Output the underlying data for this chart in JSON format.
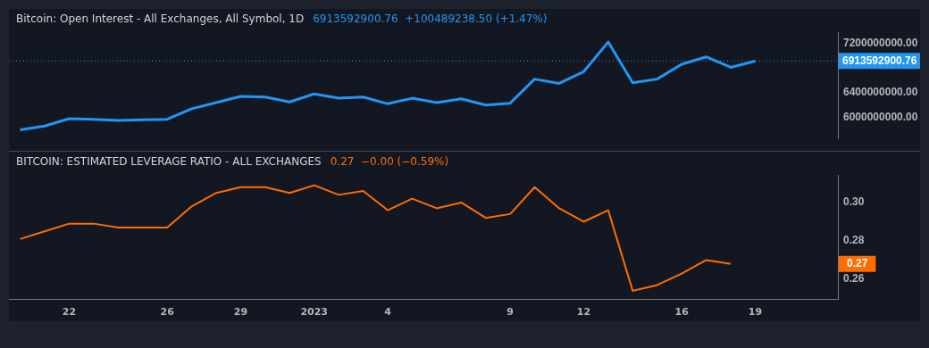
{
  "chart_data": [
    {
      "type": "line",
      "title": "Bitcoin: Open Interest - All Exchanges, All Symbol, 1D",
      "subtitle": "6913592900.76  +100489238.50 (+1.47%)",
      "marker": "none",
      "tick_labels": "y",
      "x": [
        "2022-12-20",
        "2022-12-21",
        "2022-12-22",
        "2022-12-23",
        "2022-12-24",
        "2022-12-25",
        "2022-12-26",
        "2022-12-27",
        "2022-12-28",
        "2022-12-29",
        "2022-12-30",
        "2022-12-31",
        "2023-01-01",
        "2023-01-02",
        "2023-01-03",
        "2023-01-04",
        "2023-01-05",
        "2023-01-06",
        "2023-01-07",
        "2023-01-08",
        "2023-01-09",
        "2023-01-10",
        "2023-01-11",
        "2023-01-12",
        "2023-01-13",
        "2023-01-14",
        "2023-01-15",
        "2023-01-16",
        "2023-01-17",
        "2023-01-18",
        "2023-01-19"
      ],
      "series": [
        {
          "color": "#2196f3",
          "values": [
            5800000000,
            5860000000,
            5980000000,
            5970000000,
            5950000000,
            5960000000,
            5970000000,
            6140000000,
            6240000000,
            6340000000,
            6330000000,
            6250000000,
            6380000000,
            6310000000,
            6330000000,
            6220000000,
            6310000000,
            6240000000,
            6300000000,
            6200000000,
            6230000000,
            6620000000,
            6550000000,
            6740000000,
            7220000000,
            6560000000,
            6620000000,
            6860000000,
            6980000000,
            6810000000,
            6910000000
          ]
        }
      ],
      "xlim": [
        "2022-12-19T13:00",
        "2023-01-22T09:00"
      ],
      "ylim": [
        5650000000,
        7380000000
      ],
      "yticks": [
        {
          "value": 6000000000,
          "label": "6000000000.00"
        },
        {
          "value": 6400000000,
          "label": "6400000000.00"
        },
        {
          "value": 7200000000,
          "label": "7200000000.00"
        }
      ],
      "ref_lines": [
        {
          "axis": "y",
          "value": 6913592900.76,
          "label": "6913592900.76",
          "color": "#2196f3",
          "line_style": "dotted"
        }
      ]
    },
    {
      "type": "line",
      "title": "BITCOIN: ESTIMATED LEVERAGE RATIO - ALL EXCHANGES",
      "subtitle": "0.27  −0.00 (−0.59%)",
      "marker": "none",
      "x": [
        "2022-12-20",
        "2022-12-21",
        "2022-12-22",
        "2022-12-23",
        "2022-12-24",
        "2022-12-25",
        "2022-12-26",
        "2022-12-27",
        "2022-12-28",
        "2022-12-29",
        "2022-12-30",
        "2022-12-31",
        "2023-01-01",
        "2023-01-02",
        "2023-01-03",
        "2023-01-04",
        "2023-01-05",
        "2023-01-06",
        "2023-01-07",
        "2023-01-08",
        "2023-01-09",
        "2023-01-10",
        "2023-01-11",
        "2023-01-12",
        "2023-01-13",
        "2023-01-14",
        "2023-01-15",
        "2023-01-16",
        "2023-01-17",
        "2023-01-18"
      ],
      "series": [
        {
          "color": "#ff6d00",
          "values": [
            0.281,
            0.285,
            0.289,
            0.289,
            0.287,
            0.287,
            0.287,
            0.298,
            0.305,
            0.308,
            0.308,
            0.305,
            0.309,
            0.304,
            0.306,
            0.296,
            0.302,
            0.297,
            0.3,
            0.292,
            0.294,
            0.308,
            0.297,
            0.29,
            0.296,
            0.254,
            0.257,
            0.263,
            0.27,
            0.268
          ]
        }
      ],
      "xlim": [
        "2022-12-19T13:00",
        "2023-01-22T09:00"
      ],
      "ylim": [
        0.2494,
        0.3144
      ],
      "xticks": [
        {
          "value": "2022-12-22",
          "label": "22"
        },
        {
          "value": "2022-12-26",
          "label": "26"
        },
        {
          "value": "2022-12-29",
          "label": "29"
        },
        {
          "value": "2023-01-01",
          "label": "2023"
        },
        {
          "value": "2023-01-04",
          "label": "4"
        },
        {
          "value": "2023-01-09",
          "label": "9"
        },
        {
          "value": "2023-01-12",
          "label": "12"
        },
        {
          "value": "2023-01-16",
          "label": "16"
        },
        {
          "value": "2023-01-19",
          "label": "19"
        }
      ],
      "yticks": [
        {
          "value": 0.3,
          "label": "0.30"
        },
        0.28,
        0.26
      ],
      "annotations": [
        "0.27"
      ]
    }
  ]
}
